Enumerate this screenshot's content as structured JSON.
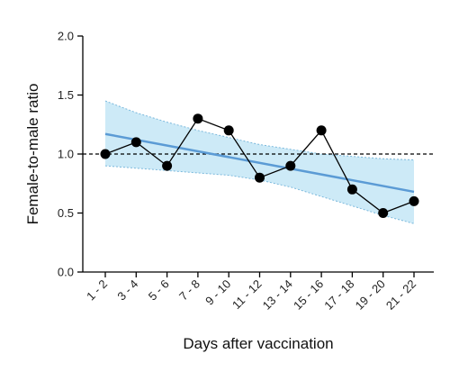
{
  "chart_data": {
    "type": "line",
    "xlabel": "Days after vaccination",
    "ylabel": "Female-to-male ratio",
    "categories": [
      "1 - 2",
      "3 - 4",
      "5 - 6",
      "7 - 8",
      "9 - 10",
      "11 - 12",
      "13 - 14",
      "15 - 16",
      "17 - 18",
      "19 - 20",
      "21 - 22"
    ],
    "series": [
      {
        "values": [
          1.0,
          1.1,
          0.9,
          1.3,
          1.2,
          0.8,
          0.9,
          1.2,
          0.7,
          0.5,
          0.6
        ],
        "color": "#000000",
        "marker": "circle"
      }
    ],
    "trend": {
      "start": 1.17,
      "end": 0.68,
      "color": "#5b9bd5",
      "ci_upper": [
        1.45,
        1.35,
        1.27,
        1.2,
        1.14,
        1.08,
        1.04,
        1.0,
        0.98,
        0.96,
        0.95
      ],
      "ci_lower": [
        0.9,
        0.88,
        0.86,
        0.84,
        0.82,
        0.78,
        0.72,
        0.64,
        0.56,
        0.48,
        0.41
      ],
      "fill_color": "#cdeaf7",
      "edge_color": "#7ab8dc"
    },
    "reference_line": {
      "y": 1.0,
      "style": "dashed",
      "color": "#000000"
    },
    "yticks": [
      "0.0",
      "0.5",
      "1.0",
      "1.5",
      "2.0"
    ],
    "ylim": [
      0,
      2.0
    ],
    "grid": false,
    "legend": "none"
  }
}
